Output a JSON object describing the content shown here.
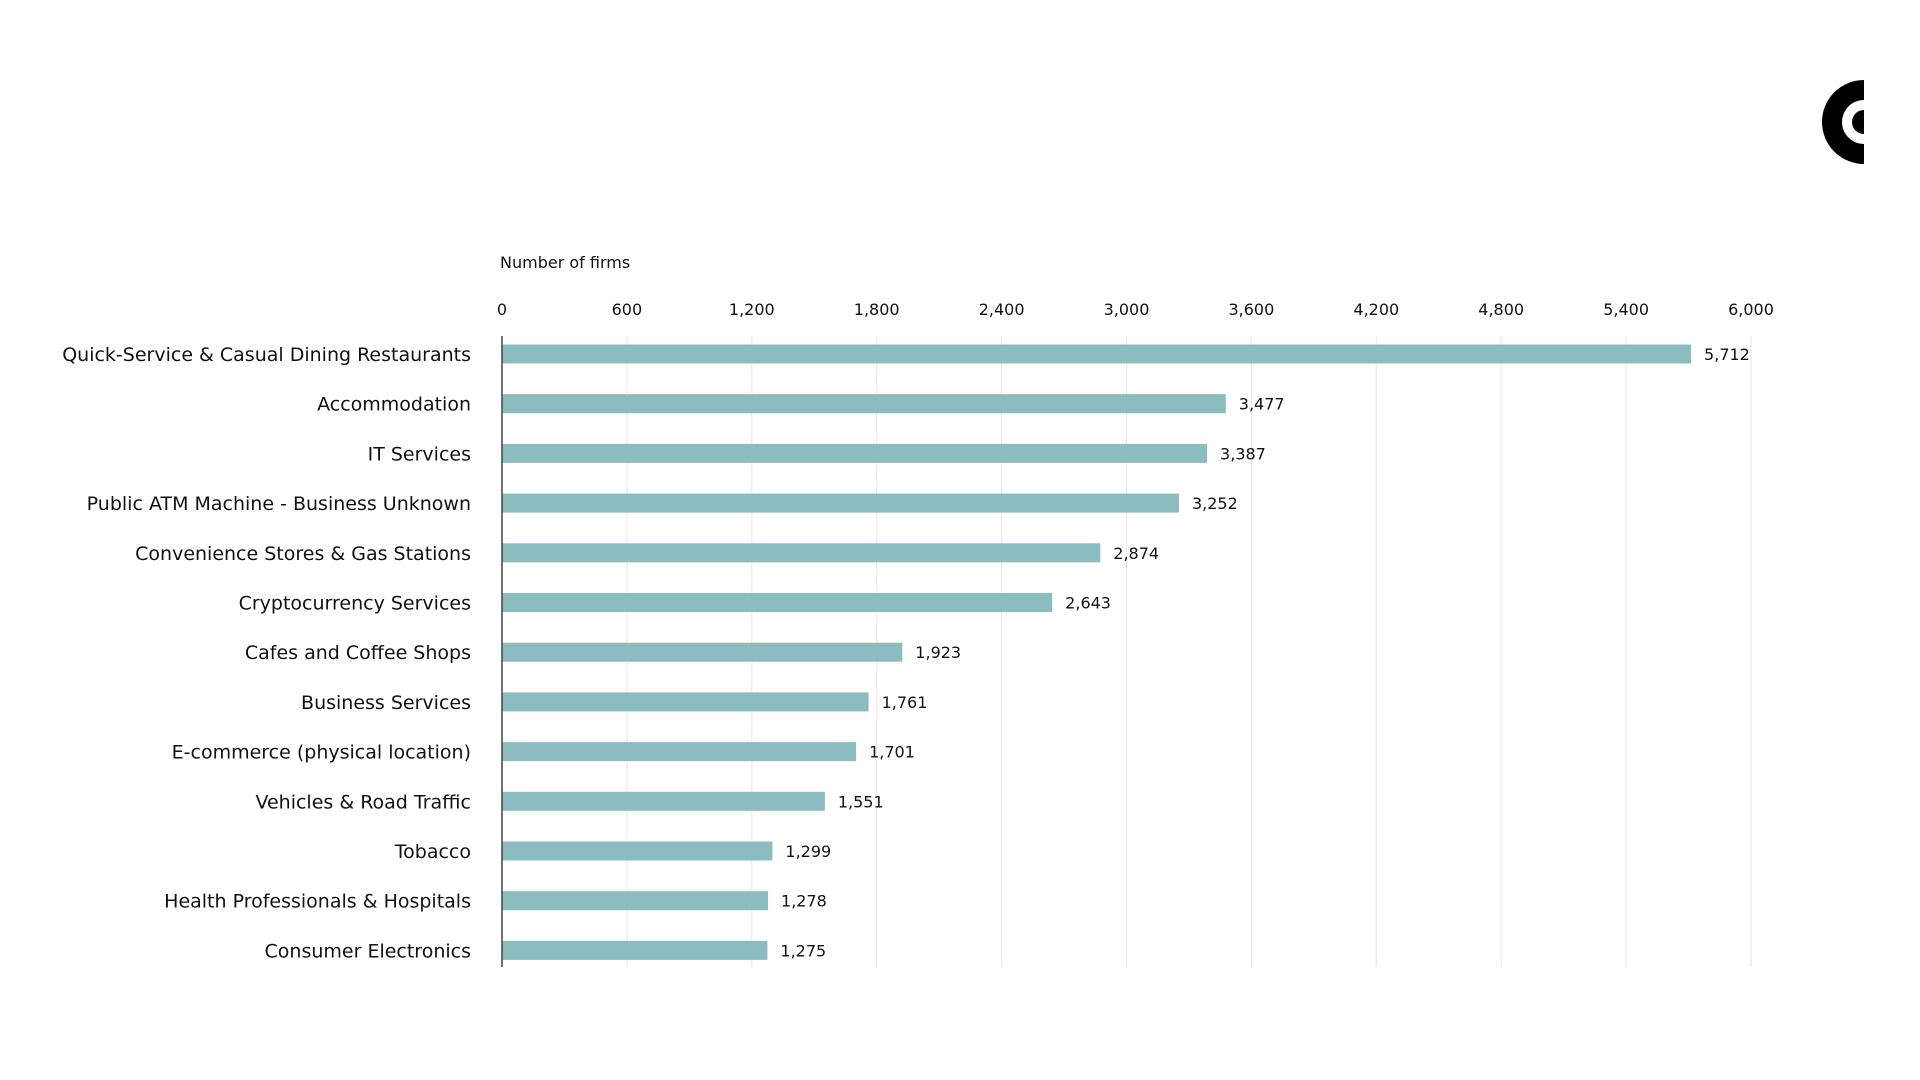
{
  "chart_data": {
    "type": "bar",
    "orientation": "horizontal",
    "xlabel": "Number of firms",
    "ylabel": "",
    "xlim": [
      0,
      6000
    ],
    "ticks": [
      0,
      600,
      1200,
      1800,
      2400,
      3000,
      3600,
      4200,
      4800,
      5400,
      6000
    ],
    "tick_labels": [
      "0",
      "600",
      "1,200",
      "1,800",
      "2,400",
      "3,000",
      "3,600",
      "4,200",
      "4,800",
      "5,400",
      "6,000"
    ],
    "grid": true,
    "categories": [
      "Quick-Service & Casual Dining Restaurants",
      "Accommodation",
      "IT Services",
      "Public ATM Machine - Business Unknown",
      "Convenience Stores & Gas Stations",
      "Cryptocurrency Services",
      "Cafes and Coffee Shops",
      "Business Services",
      "E-commerce (physical location)",
      "Vehicles & Road Traffic",
      "Tobacco",
      "Health Professionals & Hospitals",
      "Consumer Electronics"
    ],
    "values": [
      5712,
      3477,
      3387,
      3252,
      2874,
      2643,
      1923,
      1761,
      1701,
      1551,
      1299,
      1278,
      1275
    ],
    "value_labels": [
      "5,712",
      "3,477",
      "3,387",
      "3,252",
      "2,874",
      "2,643",
      "1,923",
      "1,761",
      "1,701",
      "1,551",
      "1,299",
      "1,278",
      "1,275"
    ],
    "bar_color": "#8bbcbf"
  },
  "logo": {
    "icon": "brand-logo-icon",
    "color": "#000000"
  }
}
